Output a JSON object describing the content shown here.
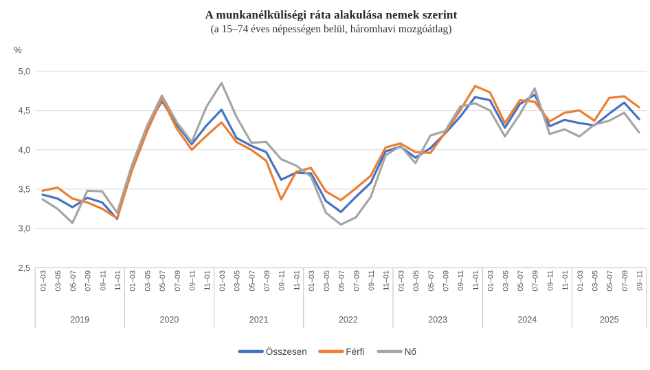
{
  "chart_data": {
    "type": "line",
    "title": "A munkanélküliségi ráta alakulása nemek szerint",
    "subtitle": "(a 15–74 éves népességen belül, háromhavi mozgóátlag)",
    "unit_label": "%",
    "grid": true,
    "legend_position": "bottom",
    "y_axis": {
      "min": 2.5,
      "max": 5.0,
      "step": 0.5,
      "tick_labels_top_to_bottom": [
        "5,0",
        "4,5",
        "4,0",
        "3,5",
        "3,0",
        "2,5"
      ]
    },
    "x_axis": {
      "years": [
        {
          "label": "2019",
          "ticks": [
            "01–03",
            "03–05",
            "05–07",
            "07–09",
            "09–11",
            "11–01"
          ]
        },
        {
          "label": "2020",
          "ticks": [
            "01–03",
            "03–05",
            "05–07",
            "07–09",
            "09–11",
            "11–01"
          ]
        },
        {
          "label": "2021",
          "ticks": [
            "01–03",
            "03–05",
            "05–07",
            "07–09",
            "09–11",
            "11–01"
          ]
        },
        {
          "label": "2022",
          "ticks": [
            "01–03",
            "03–05",
            "05–07",
            "07–09",
            "09–11",
            "11–01"
          ]
        },
        {
          "label": "2023",
          "ticks": [
            "01–03",
            "03–05",
            "05–07",
            "07–09",
            "09–11",
            "11–01"
          ]
        },
        {
          "label": "2024",
          "ticks": [
            "01–03",
            "03–05",
            "05–07",
            "07–09",
            "09–11",
            "11–01"
          ]
        },
        {
          "label": "2025",
          "ticks": [
            "01–03",
            "03–05",
            "05–07",
            "07–09",
            "09–11"
          ]
        }
      ]
    },
    "series": [
      {
        "name": "Összesen",
        "color": "#4472C4",
        "values": [
          3.43,
          3.38,
          3.27,
          3.39,
          3.33,
          3.12,
          3.79,
          4.28,
          4.62,
          4.32,
          4.07,
          4.31,
          4.51,
          4.15,
          4.05,
          3.97,
          3.62,
          3.71,
          3.7,
          3.35,
          3.21,
          3.4,
          3.58,
          3.98,
          4.04,
          3.9,
          4.02,
          4.21,
          4.42,
          4.67,
          4.63,
          4.28,
          4.58,
          4.7,
          4.3,
          4.38,
          4.34,
          4.31,
          4.46,
          4.6,
          4.39
        ]
      },
      {
        "name": "Férfi",
        "color": "#ED7D31",
        "values": [
          3.48,
          3.52,
          3.38,
          3.33,
          3.25,
          3.13,
          3.74,
          4.23,
          4.65,
          4.27,
          4.0,
          4.18,
          4.35,
          4.1,
          4.0,
          3.86,
          3.37,
          3.72,
          3.77,
          3.47,
          3.36,
          3.51,
          3.67,
          4.03,
          4.08,
          3.97,
          3.96,
          4.22,
          4.5,
          4.81,
          4.73,
          4.34,
          4.63,
          4.61,
          4.36,
          4.47,
          4.5,
          4.37,
          4.66,
          4.68,
          4.54
        ]
      },
      {
        "name": "Nő",
        "color": "#A5A5A5",
        "values": [
          3.37,
          3.25,
          3.07,
          3.48,
          3.47,
          3.2,
          3.81,
          4.3,
          4.69,
          4.35,
          4.1,
          4.55,
          4.85,
          4.42,
          4.09,
          4.1,
          3.88,
          3.8,
          3.66,
          3.2,
          3.05,
          3.14,
          3.4,
          3.93,
          4.05,
          3.83,
          4.18,
          4.24,
          4.55,
          4.59,
          4.5,
          4.17,
          4.45,
          4.78,
          4.2,
          4.26,
          4.17,
          4.32,
          4.37,
          4.47,
          4.22
        ]
      }
    ],
    "colors": {
      "grid": "#D9D9D9",
      "axis": "#BFBFBF",
      "tick_text": "#595959",
      "title_text": "#262626"
    }
  }
}
